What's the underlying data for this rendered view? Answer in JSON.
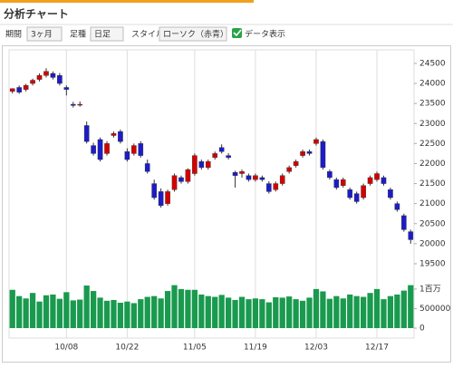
{
  "header": {
    "title": "分析チャート"
  },
  "controls": {
    "period_label": "期間",
    "period_value": "3ヶ月",
    "bar_label": "足種",
    "bar_value": "日足",
    "style_label": "スタイル",
    "style_value": "ローソク（赤青）",
    "data_label": "データ表示"
  },
  "chart_data": {
    "type": "candlestick",
    "categories": [
      null,
      null,
      null,
      null,
      null,
      null,
      null,
      null,
      "10/08",
      null,
      null,
      null,
      null,
      null,
      null,
      null,
      null,
      "10/22",
      null,
      null,
      null,
      null,
      null,
      null,
      null,
      null,
      null,
      "11/05",
      null,
      null,
      null,
      null,
      null,
      null,
      null,
      null,
      "11/19",
      null,
      null,
      null,
      null,
      null,
      null,
      null,
      null,
      "12/03",
      null,
      null,
      null,
      null,
      null,
      null,
      null,
      null,
      "12/17",
      null,
      null,
      null,
      null,
      null
    ],
    "open": [
      23800,
      23900,
      23850,
      24000,
      24100,
      24200,
      24250,
      24200,
      23900,
      23480,
      23470,
      22950,
      22450,
      22600,
      22250,
      22700,
      22800,
      22300,
      22250,
      22500,
      22000,
      21500,
      21300,
      21000,
      21350,
      21650,
      21550,
      21750,
      22050,
      21900,
      22150,
      22400,
      22200,
      21780,
      21750,
      21700,
      21600,
      21650,
      21500,
      21350,
      21500,
      21800,
      21950,
      22200,
      22300,
      22500,
      22550,
      21800,
      21600,
      21450,
      21350,
      21250,
      21150,
      21500,
      21600,
      21650,
      21350,
      21000,
      20700,
      20300
    ],
    "high": [
      23880,
      23950,
      23990,
      24120,
      24250,
      24380,
      24300,
      24260,
      23950,
      23540,
      23550,
      23050,
      22520,
      22650,
      22560,
      22800,
      22850,
      22380,
      22500,
      22560,
      22100,
      21600,
      21380,
      21350,
      21750,
      21700,
      21880,
      22250,
      22100,
      22100,
      22300,
      22480,
      22260,
      21820,
      21850,
      21750,
      21750,
      21700,
      21560,
      21550,
      21750,
      21950,
      22100,
      22350,
      22350,
      22650,
      22600,
      21850,
      21650,
      21650,
      21400,
      21300,
      21500,
      21700,
      21800,
      21700,
      21400,
      21050,
      20750,
      20350
    ],
    "low": [
      23750,
      23740,
      23800,
      23950,
      24050,
      24150,
      24100,
      23950,
      23700,
      23400,
      23420,
      22500,
      22200,
      22050,
      22200,
      22650,
      22500,
      22050,
      22200,
      22150,
      21750,
      21100,
      20900,
      20950,
      21300,
      21500,
      21500,
      21700,
      21850,
      21850,
      22100,
      22250,
      22100,
      21400,
      21650,
      21550,
      21550,
      21550,
      21250,
      21300,
      21450,
      21750,
      21900,
      22150,
      22200,
      22450,
      21850,
      21600,
      21350,
      21400,
      21100,
      21000,
      21100,
      21450,
      21550,
      21450,
      21100,
      20800,
      20300,
      20000
    ],
    "close": [
      23870,
      23780,
      23950,
      24080,
      24200,
      24300,
      24150,
      24000,
      23850,
      23450,
      23480,
      22550,
      22250,
      22100,
      22500,
      22750,
      22550,
      22100,
      22450,
      22200,
      21800,
      21150,
      20950,
      21300,
      21700,
      21550,
      21850,
      22200,
      21900,
      22050,
      22250,
      22300,
      22150,
      21700,
      21800,
      21600,
      21700,
      21600,
      21300,
      21500,
      21700,
      21900,
      22050,
      22300,
      22250,
      22600,
      21900,
      21650,
      21400,
      21600,
      21150,
      21050,
      21450,
      21650,
      21750,
      21500,
      21150,
      20850,
      20350,
      20100
    ],
    "volume": [
      980000,
      820000,
      760000,
      900000,
      680000,
      840000,
      860000,
      750000,
      920000,
      710000,
      730000,
      1090000,
      950000,
      780000,
      700000,
      720000,
      650000,
      680000,
      640000,
      740000,
      800000,
      820000,
      760000,
      950000,
      1100000,
      1000000,
      980000,
      980000,
      860000,
      820000,
      800000,
      850000,
      780000,
      720000,
      800000,
      740000,
      760000,
      740000,
      660000,
      790000,
      780000,
      810000,
      740000,
      700000,
      780000,
      1000000,
      940000,
      750000,
      820000,
      760000,
      860000,
      820000,
      800000,
      900000,
      1000000,
      740000,
      820000,
      860000,
      960000,
      1100000
    ],
    "up_color": "#d40000",
    "down_color": "#1c1cc8",
    "volume_color": "#199a4e",
    "ylim": [
      19250,
      24800
    ],
    "yticks": [
      19500,
      20000,
      20500,
      21000,
      21500,
      22000,
      22500,
      23000,
      23500,
      24000,
      24500
    ],
    "y2lim": [
      0,
      1160000
    ],
    "y2ticks": [
      0,
      500000,
      {
        "value": 1000000,
        "label": "1百万"
      }
    ],
    "grid": true
  }
}
